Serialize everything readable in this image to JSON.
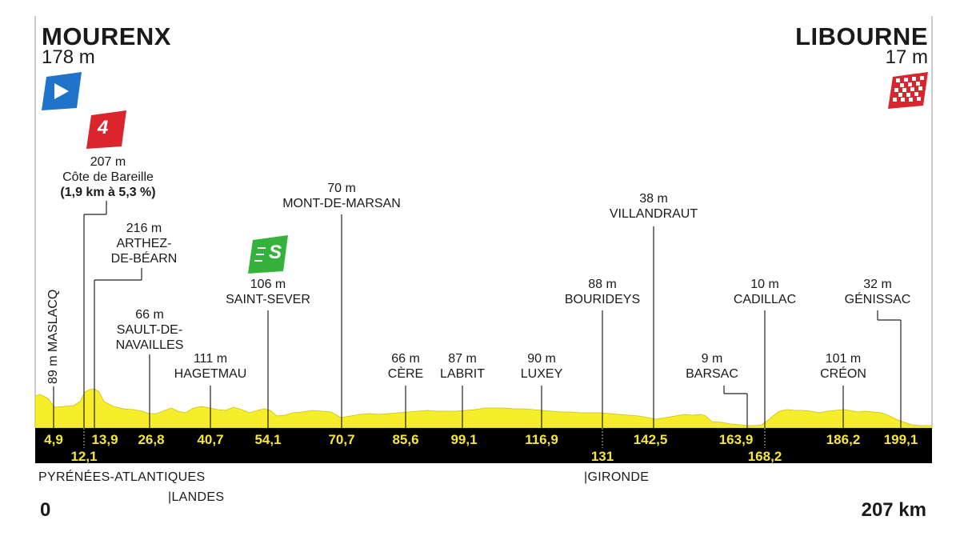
{
  "start": {
    "city": "MOURENX",
    "altitude": "178 m"
  },
  "finish": {
    "city": "LIBOURNE",
    "altitude": "17 m"
  },
  "climb": {
    "category": "4",
    "altitude": "207 m",
    "name": "Côte de Bareille",
    "detail": "(1,9 km à 5,3 %)"
  },
  "sprint": {
    "icon": "S"
  },
  "points": [
    {
      "name": "MASLACQ",
      "alt": "89 m",
      "km": "4,9"
    },
    {
      "name": "ARTHEZ-DE-BÉARN",
      "line1": "ARTHEZ-",
      "line2": "DE-BÉARN",
      "alt": "216 m",
      "km": "13,9"
    },
    {
      "name": "SAULT-DE-NAVAILLES",
      "line1": "SAULT-DE-",
      "line2": "NAVAILLES",
      "alt": "66 m",
      "km": "26,8"
    },
    {
      "name": "HAGETMAU",
      "alt": "111 m",
      "km": "40,7"
    },
    {
      "name": "SAINT-SEVER",
      "alt": "106 m",
      "km": "54,1"
    },
    {
      "name": "MONT-DE-MARSAN",
      "alt": "70 m",
      "km": "70,7"
    },
    {
      "name": "CÈRE",
      "alt": "66 m",
      "km": "85,6"
    },
    {
      "name": "LABRIT",
      "alt": "87 m",
      "km": "99,1"
    },
    {
      "name": "LUXEY",
      "alt": "90 m",
      "km": "116,9"
    },
    {
      "name": "BOURIDEYS",
      "alt": "88 m",
      "km": "131"
    },
    {
      "name": "VILLANDRAUT",
      "alt": "38 m",
      "km": "142,5"
    },
    {
      "name": "BARSAC",
      "alt": "9 m",
      "km": "163,9"
    },
    {
      "name": "CADILLAC",
      "alt": "10 m",
      "km": "168,2"
    },
    {
      "name": "CRÉON",
      "alt": "101 m",
      "km": "186,2"
    },
    {
      "name": "GÉNISSAC",
      "alt": "32 m",
      "km": "199,1"
    }
  ],
  "climb_km": "12,1",
  "regions": [
    "PYRÉNÉES-ATLANTIQUES",
    "LANDES",
    "GIRONDE"
  ],
  "axis": {
    "start": "0",
    "end": "207 km"
  },
  "colors": {
    "profile": "#f7ee2b",
    "band": "#000000",
    "distance_text": "#f5e63a",
    "start_flag": "#1f73c9",
    "climb_badge": "#d9252b",
    "sprint_badge": "#35b23c",
    "finish_flag": "#d9252b"
  }
}
